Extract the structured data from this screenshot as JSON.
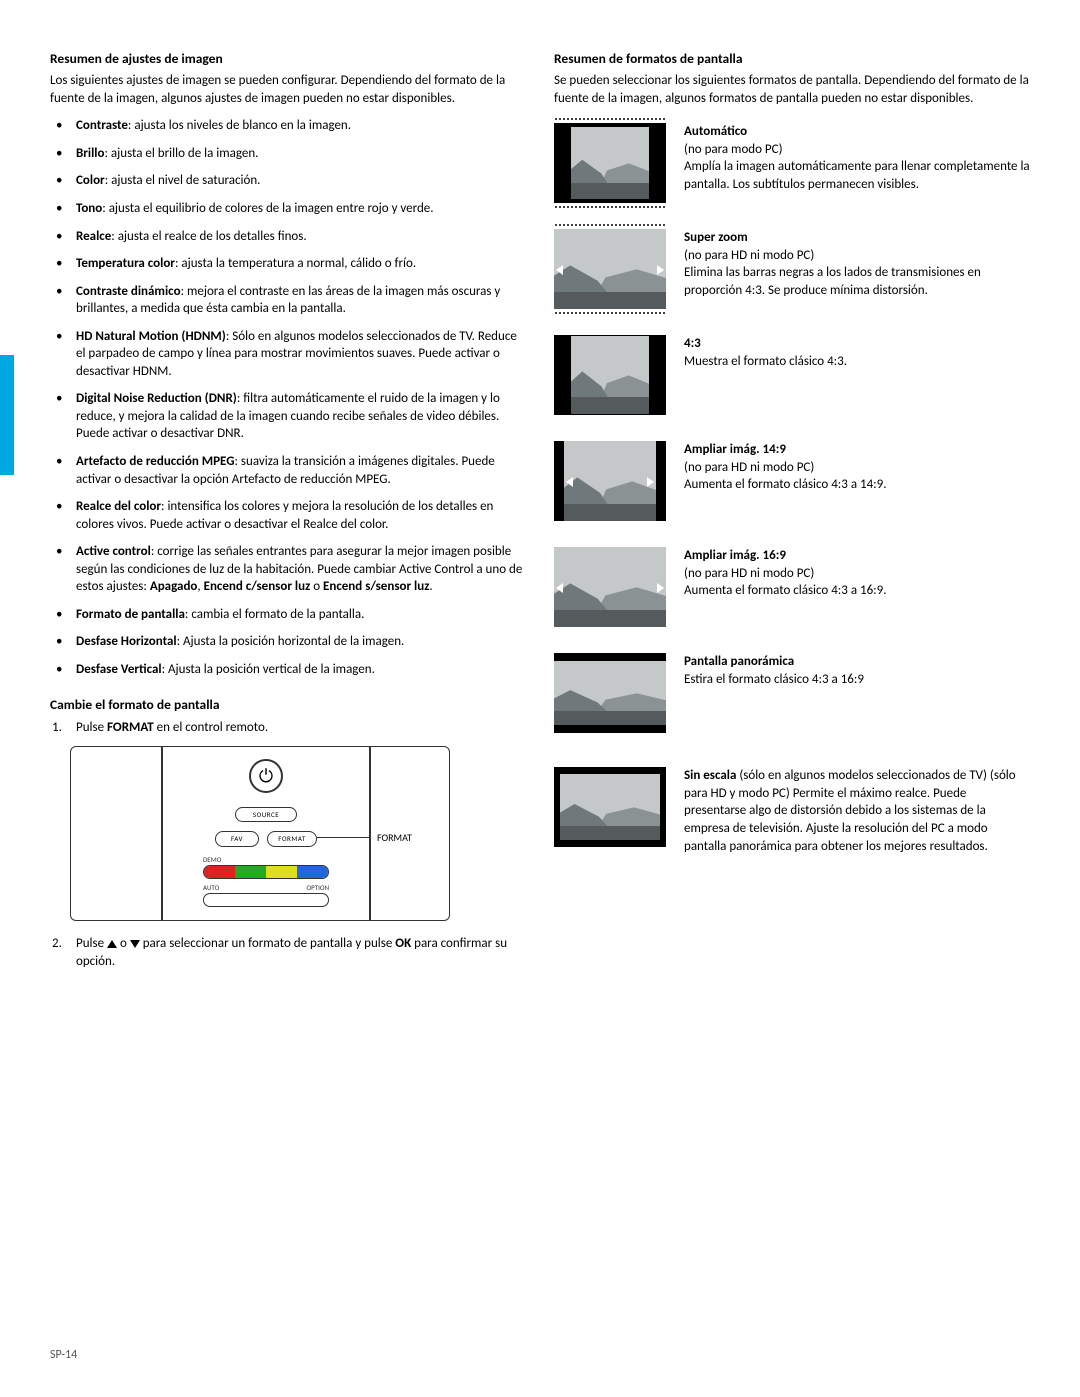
{
  "page_number": "SP-14",
  "left": {
    "h1": "Resumen de ajustes de imagen",
    "intro": "Los siguientes ajustes de imagen se pueden configurar. Dependiendo del formato de la fuente de la imagen, algunos ajustes de imagen pueden no estar disponibles.",
    "items": [
      {
        "term": "Contraste",
        "sep": ": ",
        "rest": "ajusta los niveles de blanco en la imagen."
      },
      {
        "term": "Brillo",
        "sep": ": ",
        "rest": "ajusta el brillo de la imagen."
      },
      {
        "term": "Color",
        "sep": ": ",
        "rest": "ajusta el nivel de saturación."
      },
      {
        "term": "Tono",
        "sep": ": ",
        "rest": "ajusta el equilibrio de colores de la imagen entre rojo y verde."
      },
      {
        "term": "Realce",
        "sep": ": ",
        "rest": "ajusta el realce de los detalles finos."
      },
      {
        "term": "Temperatura color",
        "sep": ": ",
        "rest": "ajusta la temperatura a normal, cálido o frío."
      },
      {
        "term": "Contraste dinámico",
        "sep": ": ",
        "rest": "mejora el contraste en las áreas de la imagen más oscuras y brillantes, a medida que ésta cambia en la pantalla."
      },
      {
        "term": "HD Natural Motion (HDNM)",
        "sep": ": ",
        "rest": "Sólo en algunos modelos seleccionados de TV. Reduce el parpadeo de campo y línea para mostrar movimientos suaves. Puede activar o desactivar HDNM."
      },
      {
        "term": "Digital Noise Reduction (DNR)",
        "sep": ": ",
        "rest": "filtra automáticamente el ruido de la imagen y lo reduce, y mejora la calidad de la imagen cuando recibe señales de video débiles. Puede activar o desactivar DNR."
      },
      {
        "term": "Artefacto de reducción MPEG",
        "sep": ": ",
        "rest": "suaviza la transición a imágenes digitales. Puede activar o desactivar la opción Artefacto de reducción MPEG."
      },
      {
        "term": "Realce del color",
        "sep": ": ",
        "rest": "intensifica los colores y mejora la resolución de los detalles en colores vivos. Puede activar o desactivar el Realce del color."
      },
      {
        "term": "Active control",
        "sep": ": ",
        "rest": "corrige las señales entrantes para asegurar la mejor imagen posible según las condiciones de luz de la habitación. Puede cambiar Active Control a uno de estos ajustes: ",
        "tail_bold": "Apagado",
        "tail2": ", ",
        "tail_bold2": "Encend c/sensor luz",
        "tail3": " o ",
        "tail_bold3": "Encend s/sensor luz",
        "tail4": "."
      },
      {
        "term": "Formato de pantalla",
        "sep": ": ",
        "rest": "cambia el formato de la pantalla."
      },
      {
        "term": "Desfase Horizontal",
        "sep": ":  ",
        "rest": "Ajusta la posición horizontal de la imagen."
      },
      {
        "term": "Desfase Vertical",
        "sep": ":  ",
        "rest": "Ajusta la posición vertical de la imagen."
      }
    ],
    "h2": "Cambie el formato de pantalla",
    "step1a": "Pulse ",
    "step1b": "FORMAT",
    "step1c": " en el control remoto.",
    "step2a": "Pulse ",
    "step2b": " o ",
    "step2c": " para seleccionar un formato de pantalla y pulse ",
    "step2d": "OK",
    "step2e": " para confirmar su opción.",
    "remote": {
      "source": "SOURCE",
      "fav": "FAV",
      "format": "FORMAT",
      "demo": "DEMO",
      "auto": "AUTO",
      "option": "OPTION",
      "callout": "FORMAT"
    }
  },
  "right": {
    "h1": "Resumen de formatos de pantalla",
    "intro": "Se pueden seleccionar los siguientes formatos de pantalla. Dependiendo del formato de la fuente de la imagen, algunos formatos de pantalla pueden no estar disponibles.",
    "formats": [
      {
        "title": "Automático",
        "note": "(no para modo PC)",
        "desc": "Amplía la imagen automáticamente para llenar completamente la pantalla. Los subtítulos permanecen visibles.",
        "kind": "auto"
      },
      {
        "title": "Super zoom",
        "note": "(no para HD ni modo PC)",
        "desc": "Elimina las barras negras a los lados de transmisiones en proporción 4:3. Se produce mínima distorsión.",
        "kind": "superzoom"
      },
      {
        "title": "4:3",
        "note": "",
        "desc": "Muestra el formato clásico 4:3.",
        "kind": "43"
      },
      {
        "title": "Ampliar imág. 14:9",
        "note": "(no para HD ni modo PC)",
        "desc": "Aumenta el formato clásico 4:3 a 14:9.",
        "kind": "149"
      },
      {
        "title": "Ampliar imág. 16:9",
        "note": "(no para HD ni modo PC)",
        "desc": "Aumenta el formato clásico 4:3 a 16:9.",
        "kind": "169"
      },
      {
        "title": "Pantalla panorámica",
        "note": "",
        "desc": "Estira el formato clásico 4:3 a 16:9",
        "kind": "wide"
      },
      {
        "title": "Sin escala",
        "note": " (sólo en algunos modelos seleccionados de TV) (sólo para HD y modo PC) ",
        "desc": "Permite el máximo realce. Puede presentarse algo de distorsión debido a los sistemas de la empresa de televisión. Ajuste la resolución del PC a modo pantalla panorámica para obtener los mejores resultados.",
        "kind": "unscaled",
        "inline_title": true
      }
    ]
  }
}
